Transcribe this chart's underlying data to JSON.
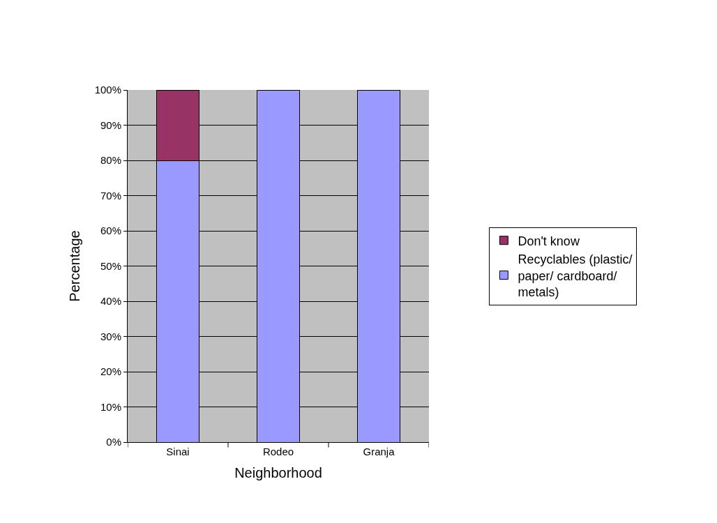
{
  "chart_data": {
    "type": "bar",
    "stacked": true,
    "xlabel": "Neighborhood",
    "ylabel": "Percentage",
    "categories": [
      "Sinai",
      "Rodeo",
      "Granja"
    ],
    "series": [
      {
        "name": "Recyclables (plastic/ paper/ cardboard/ metals)",
        "color": "#9999ff",
        "values": [
          80,
          100,
          100
        ]
      },
      {
        "name": "Don't know",
        "color": "#993366",
        "values": [
          20,
          0,
          0
        ]
      }
    ],
    "ylim": [
      0,
      100
    ],
    "yticks": [
      {
        "value": 0,
        "label": "0%"
      },
      {
        "value": 10,
        "label": "10%"
      },
      {
        "value": 20,
        "label": "20%"
      },
      {
        "value": 30,
        "label": "30%"
      },
      {
        "value": 40,
        "label": "40%"
      },
      {
        "value": 50,
        "label": "50%"
      },
      {
        "value": 60,
        "label": "60%"
      },
      {
        "value": 70,
        "label": "70%"
      },
      {
        "value": 80,
        "label": "80%"
      },
      {
        "value": 90,
        "label": "90%"
      },
      {
        "value": 100,
        "label": "100%"
      }
    ],
    "grid": "y",
    "legend": "right"
  }
}
